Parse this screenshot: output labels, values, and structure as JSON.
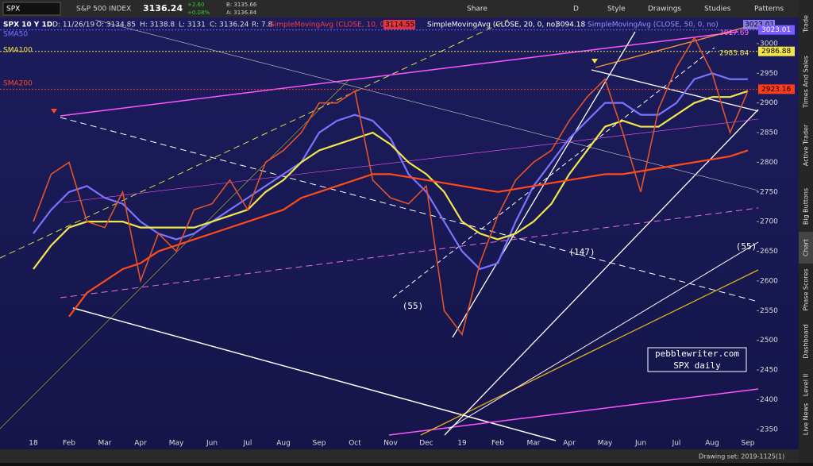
{
  "toolbar": {
    "symbol": "SPX",
    "name": "S&P 500 INDEX",
    "last": "3136.24",
    "change": "+2.60",
    "change_pct": "+0.08%",
    "bid": "B: 3135.66",
    "ask": "A: 3136.84",
    "buttons": [
      "Share",
      "D",
      "Style",
      "Drawings",
      "Studies",
      "Patterns"
    ]
  },
  "chart_data": {
    "type": "line",
    "title": "SPX 10 Y 1D",
    "info": [
      "D: 11/26/19",
      "O: 3134.85",
      "H: 3138.8",
      "L: 3131",
      "C: 3136.24",
      "R: 7.8"
    ],
    "studies": [
      {
        "label": "SimpleMovingAvg (CLOSE, 10, 0, no)",
        "value": "3114.55",
        "color": "#ff3b3b"
      },
      {
        "label": "SimpleMovingAvg (CLOSE, 20, 0, no)",
        "value": "3094.18",
        "color": "#ffffff"
      },
      {
        "label": "SimpleMovingAvg (CLOSE, 50, 0, no)",
        "value": "3023.01",
        "color": "#9a8cff"
      }
    ],
    "categories": [
      "18",
      null,
      "Feb",
      null,
      "Mar",
      null,
      "Apr",
      null,
      "May",
      null,
      "Jun",
      null,
      "Jul",
      null,
      "Aug",
      null,
      "Sep",
      null,
      "Oct",
      null,
      "Nov",
      null,
      "Dec",
      null,
      "19",
      null,
      "Feb",
      null,
      "Mar",
      null,
      "Apr",
      null,
      "May",
      null,
      "Jun",
      null,
      "Jul",
      null,
      "Aug",
      null,
      "Sep"
    ],
    "values": [
      2700,
      2780,
      2800,
      2700,
      2690,
      2750,
      2600,
      2680,
      2650,
      2720,
      2730,
      2770,
      2720,
      2800,
      2820,
      2850,
      2900,
      2900,
      2920,
      2770,
      2740,
      2730,
      2760,
      2550,
      2510,
      2630,
      2710,
      2770,
      2800,
      2820,
      2870,
      2910,
      2940,
      2850,
      2750,
      2890,
      2960,
      3010,
      2950,
      2850,
      2920
    ],
    "color": "#e0542a",
    "series": [
      {
        "name": "SMA50",
        "color": "#7b73ff",
        "values": [
          2680,
          2720,
          2750,
          2760,
          2740,
          2730,
          2700,
          2680,
          2670,
          2680,
          2700,
          2720,
          2740,
          2760,
          2780,
          2800,
          2850,
          2870,
          2880,
          2870,
          2840,
          2780,
          2750,
          2700,
          2650,
          2620,
          2630,
          2700,
          2760,
          2800,
          2840,
          2870,
          2900,
          2900,
          2880,
          2880,
          2900,
          2940,
          2950,
          2940,
          2940
        ]
      },
      {
        "name": "SMA100",
        "color": "#f2e64a",
        "values": [
          2620,
          2660,
          2690,
          2700,
          2700,
          2700,
          2690,
          2690,
          2690,
          2690,
          2700,
          2710,
          2720,
          2750,
          2770,
          2800,
          2820,
          2830,
          2840,
          2850,
          2830,
          2800,
          2780,
          2750,
          2700,
          2680,
          2670,
          2680,
          2700,
          2730,
          2780,
          2820,
          2860,
          2870,
          2860,
          2860,
          2880,
          2900,
          2910,
          2910,
          2920
        ]
      },
      {
        "name": "SMA200",
        "color": "#ff4a1a",
        "values": [
          null,
          null,
          2540,
          2580,
          2600,
          2620,
          2630,
          2650,
          2660,
          2670,
          2680,
          2690,
          2700,
          2710,
          2720,
          2740,
          2750,
          2760,
          2770,
          2780,
          2780,
          2775,
          2770,
          2765,
          2760,
          2755,
          2750,
          2755,
          2760,
          2765,
          2770,
          2775,
          2780,
          2780,
          2785,
          2790,
          2795,
          2800,
          2805,
          2810,
          2820
        ]
      }
    ],
    "ylim": [
      2335,
      3040
    ],
    "yticks": [
      2350,
      2400,
      2450,
      2500,
      2550,
      2600,
      2650,
      2700,
      2750,
      2800,
      2850,
      2900,
      2950,
      3000
    ],
    "price_tags": [
      {
        "value": 3023.01,
        "color": "#7b5cff"
      },
      {
        "value": 2986.88,
        "color": "#f2e64a"
      },
      {
        "value": 2923.16,
        "color": "#ff3b1a"
      }
    ],
    "line_labels": [
      {
        "value": 3017.69,
        "color": "#ff66ff"
      },
      {
        "value": 2983.84,
        "color": "#f2e64a"
      }
    ],
    "annotations": [
      "(147)",
      "(55)",
      "(55)"
    ],
    "watermark": [
      "pebblewriter.com",
      "SPX daily"
    ]
  },
  "side_tabs": [
    "Trade",
    "Times And Sales",
    "Active Trader",
    "Big Buttons",
    "Chart",
    "Phase Scores",
    "Dashboard",
    "Level II",
    "Live News"
  ],
  "footer": "Drawing set: 2019-1125(1)"
}
